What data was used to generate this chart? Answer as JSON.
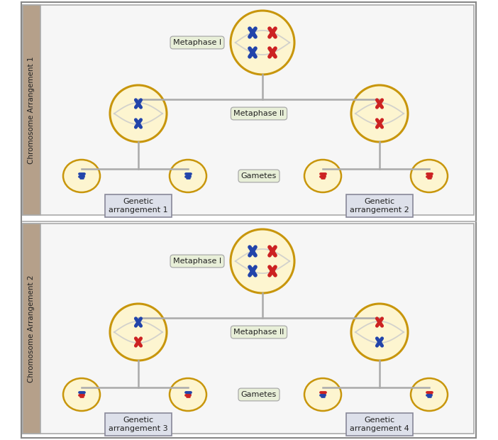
{
  "bg_color": "#ffffff",
  "sidebar_color": "#b5a08a",
  "cell_fill": "#fdf5d0",
  "cell_edge": "#c8960c",
  "blue_chr": "#2244aa",
  "red_chr": "#cc2222",
  "label_box_fill": "#e8efd8",
  "label_box_edge": "#aaaaaa",
  "genetic_box_fill": "#dde0ea",
  "genetic_box_edge": "#888899",
  "arrow_color": "#aaaaaa",
  "spindle_color": "#cccccc",
  "section_labels": [
    "Chromosome Arrangement 1",
    "Chromosome Arrangement 2"
  ],
  "genetic_labels_top": [
    "Genetic\narrangement 1",
    "Genetic\narrangement 2"
  ],
  "genetic_labels_bottom": [
    "Genetic\narrangement 3",
    "Genetic\narrangement 4"
  ],
  "panel_edge": "#aaaaaa",
  "divider_color": "#aaaaaa"
}
